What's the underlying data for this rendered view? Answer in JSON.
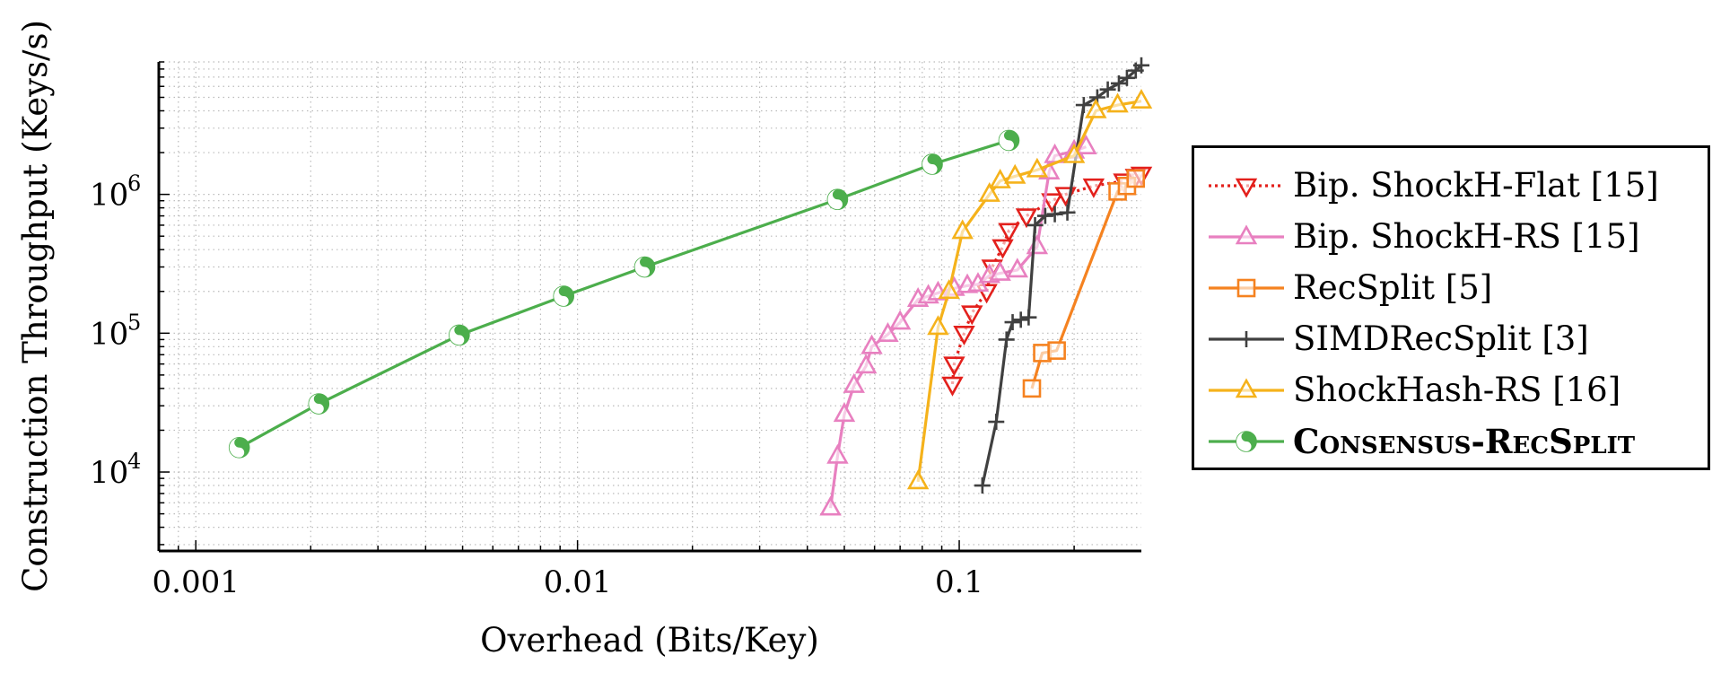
{
  "chart_data": {
    "type": "line",
    "xlabel": "Overhead (Bits/Key)",
    "ylabel": "Construction Throughput (Keys/s)",
    "xscale": "log",
    "yscale": "log",
    "xlim": [
      0.0008,
      0.3
    ],
    "ylim": [
      2700,
      9000000
    ],
    "grid": true,
    "legend_position": "right-outside",
    "x_ticks": [
      {
        "value": 0.001,
        "label": "0.001"
      },
      {
        "value": 0.01,
        "label": "0.01"
      },
      {
        "value": 0.1,
        "label": "0.1"
      }
    ],
    "y_ticks": [
      {
        "value": 10000,
        "label": "10",
        "exp": "4"
      },
      {
        "value": 100000,
        "label": "10",
        "exp": "5"
      },
      {
        "value": 1000000,
        "label": "10",
        "exp": "6"
      }
    ],
    "series": [
      {
        "name": "Bip. ShockH-Flat [15]",
        "color": "#e3201c",
        "marker": "triangle-down",
        "dash": "dotted",
        "points": [
          [
            0.096,
            43000
          ],
          [
            0.097,
            60000
          ],
          [
            0.103,
            100000
          ],
          [
            0.108,
            140000
          ],
          [
            0.118,
            200000
          ],
          [
            0.122,
            300000
          ],
          [
            0.13,
            420000
          ],
          [
            0.135,
            550000
          ],
          [
            0.15,
            700000
          ],
          [
            0.175,
            900000
          ],
          [
            0.19,
            1000000
          ],
          [
            0.225,
            1150000
          ],
          [
            0.27,
            1250000
          ],
          [
            0.29,
            1350000
          ],
          [
            0.3,
            1400000
          ]
        ]
      },
      {
        "name": "Bip. ShockH-RS [15]",
        "color": "#e880c0",
        "marker": "triangle-up",
        "dash": "solid",
        "points": [
          [
            0.046,
            5500
          ],
          [
            0.048,
            13000
          ],
          [
            0.05,
            26000
          ],
          [
            0.053,
            42000
          ],
          [
            0.057,
            58000
          ],
          [
            0.059,
            80000
          ],
          [
            0.065,
            98000
          ],
          [
            0.07,
            120000
          ],
          [
            0.078,
            175000
          ],
          [
            0.083,
            185000
          ],
          [
            0.088,
            195000
          ],
          [
            0.097,
            210000
          ],
          [
            0.105,
            220000
          ],
          [
            0.112,
            225000
          ],
          [
            0.12,
            260000
          ],
          [
            0.128,
            270000
          ],
          [
            0.142,
            285000
          ],
          [
            0.16,
            420000
          ],
          [
            0.172,
            1450000
          ],
          [
            0.178,
            1900000
          ],
          [
            0.2,
            2050000
          ],
          [
            0.215,
            2200000
          ]
        ]
      },
      {
        "name": "RecSplit [5]",
        "color": "#f58220",
        "marker": "square",
        "dash": "solid",
        "points": [
          [
            0.155,
            40000
          ],
          [
            0.165,
            72000
          ],
          [
            0.18,
            75000
          ],
          [
            0.26,
            1050000
          ],
          [
            0.275,
            1150000
          ],
          [
            0.29,
            1300000
          ]
        ]
      },
      {
        "name": "SIMDRecSplit [3]",
        "color": "#404040",
        "marker": "plus",
        "dash": "solid",
        "points": [
          [
            0.115,
            8000
          ],
          [
            0.125,
            23000
          ],
          [
            0.133,
            90000
          ],
          [
            0.138,
            120000
          ],
          [
            0.145,
            125000
          ],
          [
            0.152,
            130000
          ],
          [
            0.158,
            600000
          ],
          [
            0.168,
            700000
          ],
          [
            0.178,
            720000
          ],
          [
            0.192,
            740000
          ],
          [
            0.212,
            4400000
          ],
          [
            0.23,
            5000000
          ],
          [
            0.245,
            5700000
          ],
          [
            0.262,
            6300000
          ],
          [
            0.275,
            6900000
          ],
          [
            0.29,
            7800000
          ],
          [
            0.3,
            8500000
          ]
        ]
      },
      {
        "name": "ShockHash-RS [16]",
        "color": "#f5b21b",
        "marker": "triangle-up",
        "dash": "solid",
        "points": [
          [
            0.078,
            8500
          ],
          [
            0.088,
            110000
          ],
          [
            0.094,
            200000
          ],
          [
            0.102,
            540000
          ],
          [
            0.12,
            1000000
          ],
          [
            0.128,
            1250000
          ],
          [
            0.14,
            1350000
          ],
          [
            0.16,
            1500000
          ],
          [
            0.2,
            1900000
          ],
          [
            0.228,
            4000000
          ],
          [
            0.26,
            4400000
          ],
          [
            0.3,
            4700000
          ]
        ]
      },
      {
        "name": "Consensus-RecSplit",
        "color": "#4cae4c",
        "marker": "yinyang",
        "dash": "solid",
        "bold": true,
        "points": [
          [
            0.0013,
            15000
          ],
          [
            0.0021,
            31000
          ],
          [
            0.0049,
            97000
          ],
          [
            0.0092,
            185000
          ],
          [
            0.015,
            300000
          ],
          [
            0.048,
            920000
          ],
          [
            0.085,
            1650000
          ],
          [
            0.135,
            2450000
          ]
        ]
      }
    ]
  }
}
